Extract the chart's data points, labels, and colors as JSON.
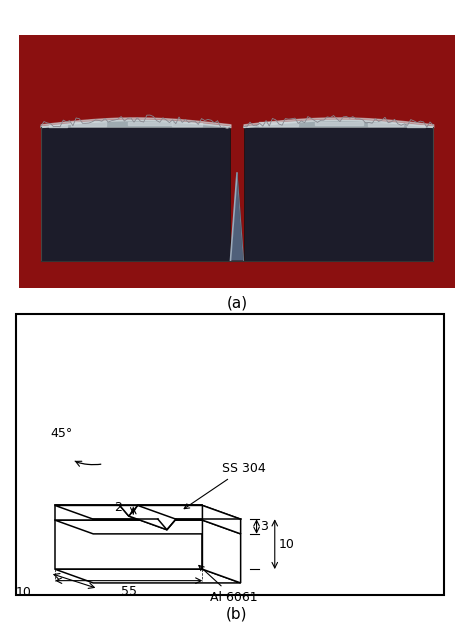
{
  "fig_width": 4.74,
  "fig_height": 6.34,
  "dpi": 100,
  "photo_label": "(a)",
  "diagram_label": "(b)",
  "bg_white": "#ffffff",
  "photo_bg": "#8B1010",
  "specimen_dark": "#1A1A2E",
  "specimen_light_top": "#B0B8C0",
  "specimen_bright": "#D8DDE0",
  "notch_sheen": "#8090A0",
  "dim_55": "55",
  "dim_10_bottom": "10",
  "dim_10_right": "10",
  "dim_3": "3",
  "dim_2": "2",
  "dim_45": "45°",
  "label_ss": "SS 304",
  "label_al": "Al 6061"
}
